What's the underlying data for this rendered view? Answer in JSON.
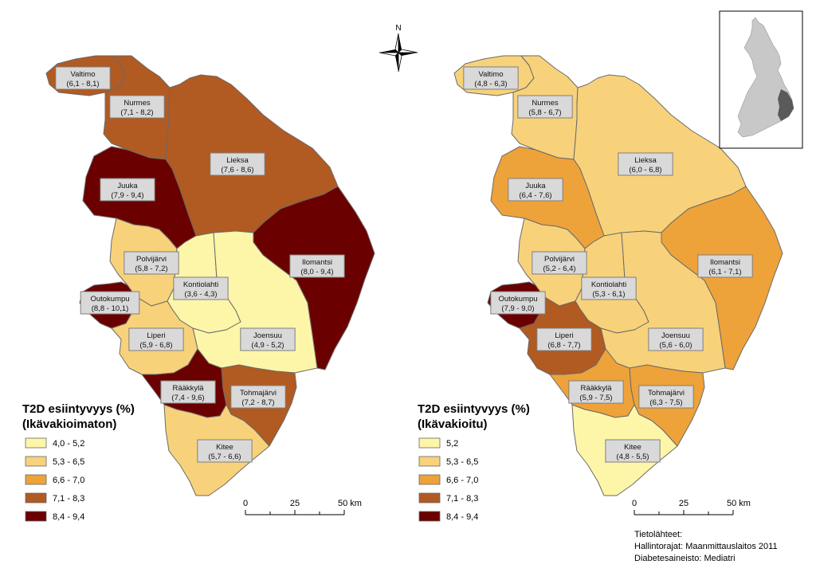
{
  "north_label": "N",
  "maps": [
    {
      "id": "left",
      "legend": {
        "title_line1": "T2D esiintyvyys (%)",
        "title_line2": "(Ikävakioimaton)",
        "classes": [
          {
            "label": "4,0 - 5,2",
            "color": "#fdf6a8"
          },
          {
            "label": "5,3 - 6,5",
            "color": "#f8d27a"
          },
          {
            "label": "6,6 - 7,0",
            "color": "#eea23a"
          },
          {
            "label": "7,1 - 8,3",
            "color": "#b15a22"
          },
          {
            "label": "8,4 - 9,4",
            "color": "#6b0000"
          }
        ]
      },
      "municipalities": [
        {
          "name": "Valtimo",
          "range": "(6,1 - 8,1)",
          "class": 3
        },
        {
          "name": "Nurmes",
          "range": "(7,1 - 8,2)",
          "class": 3
        },
        {
          "name": "Lieksa",
          "range": "(7,6 - 8,6)",
          "class": 3
        },
        {
          "name": "Juuka",
          "range": "(7,9 - 9,4)",
          "class": 4
        },
        {
          "name": "Ilomantsi",
          "range": "(8,0 - 9,4)",
          "class": 4
        },
        {
          "name": "Polvijärvi",
          "range": "(5,8 - 7,2)",
          "class": 1
        },
        {
          "name": "Kontiolahti",
          "range": "(3,6 - 4,3)",
          "class": 0
        },
        {
          "name": "Outokumpu",
          "range": "(8,8 - 10,1)",
          "class": 4
        },
        {
          "name": "Joensuu",
          "range": "(4,9 - 5,2)",
          "class": 0
        },
        {
          "name": "Liperi",
          "range": "(5,9 - 6,8)",
          "class": 1
        },
        {
          "name": "Rääkkylä",
          "range": "(7,4 - 9,6)",
          "class": 4
        },
        {
          "name": "Tohmajärvi",
          "range": "(7,2 - 8,7)",
          "class": 3
        },
        {
          "name": "Kitee",
          "range": "(5,7 - 6,6)",
          "class": 1
        }
      ],
      "scalebar": {
        "ticks": [
          "0",
          "25",
          "50 km"
        ]
      }
    },
    {
      "id": "right",
      "legend": {
        "title_line1": "T2D esiintyvyys (%)",
        "title_line2": "(Ikävakioitu)",
        "classes": [
          {
            "label": "5,2",
            "color": "#fdf6a8"
          },
          {
            "label": "5,3 - 6,5",
            "color": "#f8d27a"
          },
          {
            "label": "6,6 - 7,0",
            "color": "#eea23a"
          },
          {
            "label": "7,1 - 8,3",
            "color": "#b15a22"
          },
          {
            "label": "8,4 - 9,4",
            "color": "#6b0000"
          }
        ]
      },
      "municipalities": [
        {
          "name": "Valtimo",
          "range": "(4,8 - 6,3)",
          "class": 1
        },
        {
          "name": "Nurmes",
          "range": "(5,8 - 6,7)",
          "class": 1
        },
        {
          "name": "Lieksa",
          "range": "(6,0 - 6,8)",
          "class": 1
        },
        {
          "name": "Juuka",
          "range": "(6,4 - 7,6)",
          "class": 2
        },
        {
          "name": "Ilomantsi",
          "range": "(6,1 - 7,1)",
          "class": 2
        },
        {
          "name": "Polvijärvi",
          "range": "(5,2 - 6,4)",
          "class": 1
        },
        {
          "name": "Kontiolahti",
          "range": "(5,3 - 6,1)",
          "class": 1
        },
        {
          "name": "Outokumpu",
          "range": "(7,9 - 9,0)",
          "class": 4
        },
        {
          "name": "Joensuu",
          "range": "(5,6 - 6,0)",
          "class": 1
        },
        {
          "name": "Liperi",
          "range": "(6,8 - 7,7)",
          "class": 3
        },
        {
          "name": "Rääkkylä",
          "range": "(5,9 - 7,5)",
          "class": 2
        },
        {
          "name": "Tohmajärvi",
          "range": "(6,3 - 7,5)",
          "class": 2
        },
        {
          "name": "Kitee",
          "range": "(4,8 - 5,5)",
          "class": 0
        }
      ],
      "scalebar": {
        "ticks": [
          "0",
          "25",
          "50 km"
        ]
      }
    }
  ],
  "sources": {
    "line1": "Tietolähteet:",
    "line2": "Hallintorajat: Maanmittauslaitos 2011",
    "line3": "Diabetesaineisto: Mediatri"
  },
  "inset": {
    "finland_color": "#c8c8c8",
    "region_color": "#5a5a5a"
  }
}
